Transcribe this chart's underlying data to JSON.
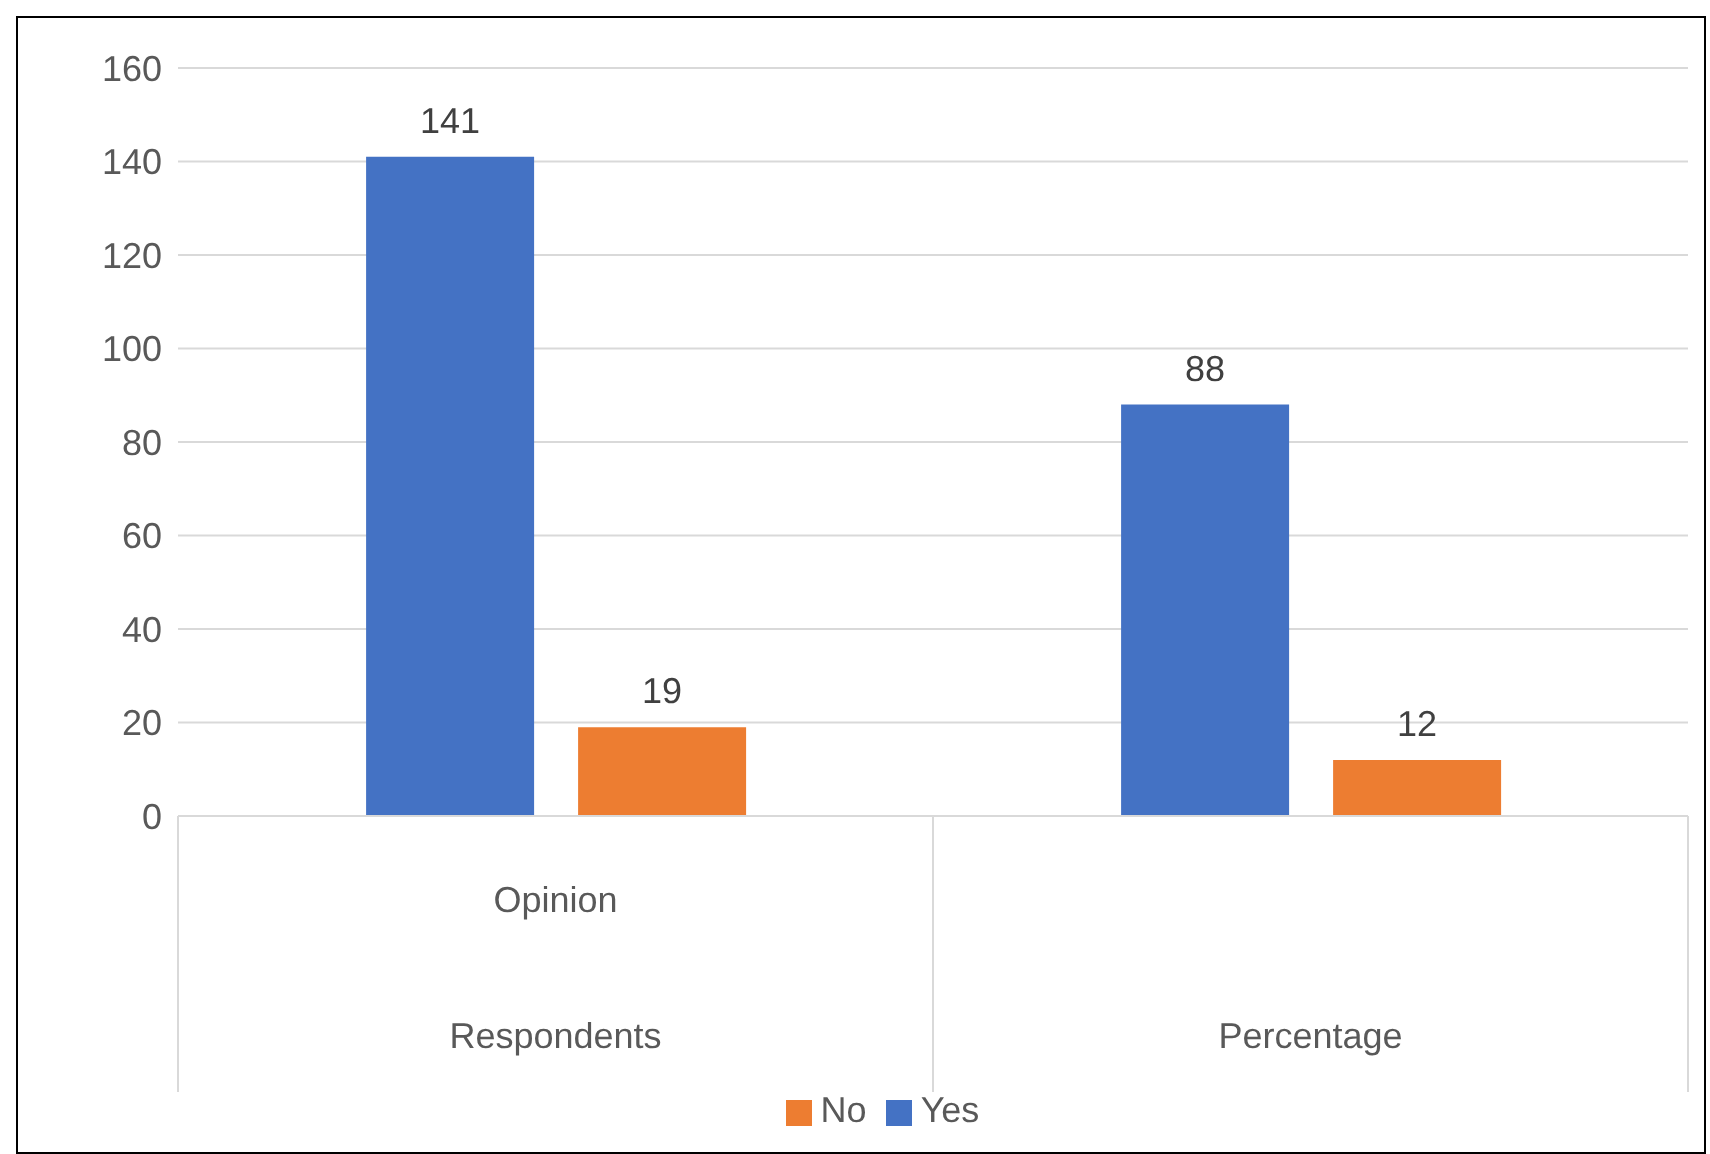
{
  "chart_data": {
    "type": "bar",
    "categories": [
      "Respondents",
      "Percentage"
    ],
    "series": [
      {
        "name": "Yes",
        "color": "#4472c4",
        "values": [
          141,
          88
        ]
      },
      {
        "name": "No",
        "color": "#ed7d31",
        "values": [
          19,
          12
        ]
      }
    ],
    "annotations": [
      "Opinion"
    ],
    "ylim": [
      0,
      160
    ],
    "yticks": [
      0,
      20,
      40,
      60,
      80,
      100,
      120,
      140,
      160
    ],
    "grid": "y",
    "legend": "bottom",
    "data_labels": true
  }
}
